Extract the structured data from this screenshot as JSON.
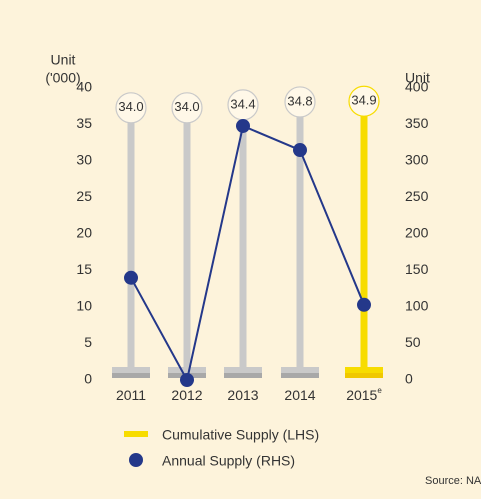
{
  "chart_data": {
    "type": "bar_line",
    "y_label_lines": [
      "Unit",
      "('000)"
    ],
    "y2_label": "Unit",
    "categories": [
      "2011",
      "2012",
      "2013",
      "2014",
      "2015"
    ],
    "category_superscripts": [
      null,
      null,
      null,
      null,
      "e"
    ],
    "series": [
      {
        "name": "Cumulative Supply (LHS)",
        "type": "bar",
        "color": "#c9c9c9",
        "highlight_color": "#f7dc00",
        "colors": [
          "#c9c9c9",
          "#c9c9c9",
          "#c9c9c9",
          "#c9c9c9",
          "#f7dc00"
        ],
        "values": [
          34.0,
          34.0,
          34.4,
          34.8,
          34.9
        ],
        "value_labels": [
          "34.0",
          "34.0",
          "34.4",
          "34.8",
          "34.9"
        ]
      },
      {
        "name": "Annual Supply (RHS)",
        "type": "line",
        "axis": "y2",
        "color": "#24388a",
        "values": [
          140,
          0,
          348,
          315,
          103
        ]
      }
    ],
    "ylim": [
      0,
      40
    ],
    "yticks": [
      0,
      5,
      10,
      15,
      20,
      25,
      30,
      35,
      40
    ],
    "y2lim": [
      0,
      400
    ],
    "y2ticks": [
      0,
      50,
      100,
      150,
      200,
      250,
      300,
      350,
      400
    ],
    "source": "Source: NAPIC"
  }
}
